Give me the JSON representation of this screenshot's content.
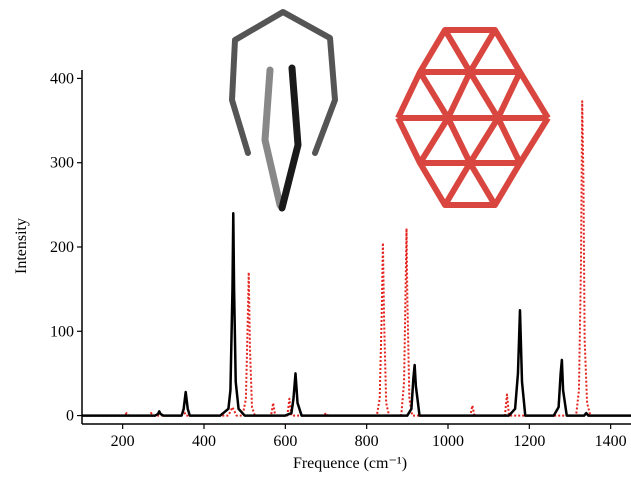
{
  "chart_data": {
    "type": "line",
    "xlabel": "Frequence (cm⁻¹)",
    "ylabel": "Intensity",
    "xlim": [
      100,
      1450
    ],
    "ylim": [
      -10,
      410
    ],
    "xticks": [
      200,
      400,
      600,
      800,
      1000,
      1200,
      1400
    ],
    "yticks": [
      0,
      100,
      200,
      300,
      400
    ],
    "series": [
      {
        "color": "#000000",
        "line_style": "solid",
        "x": [
          100,
          280,
          287,
          290,
          293,
          300,
          345,
          350,
          355,
          360,
          365,
          440,
          460,
          465,
          470,
          472,
          474,
          478,
          485,
          500,
          600,
          615,
          620,
          625,
          630,
          640,
          900,
          910,
          915,
          918,
          921,
          930,
          1150,
          1165,
          1172,
          1177,
          1182,
          1190,
          1260,
          1272,
          1277,
          1280,
          1283,
          1292,
          1335,
          1340,
          1345,
          1450
        ],
        "values": [
          0,
          0,
          2,
          5,
          2,
          0,
          0,
          8,
          28,
          8,
          0,
          0,
          8,
          30,
          150,
          240,
          150,
          40,
          8,
          0,
          0,
          3,
          20,
          50,
          15,
          0,
          0,
          8,
          45,
          60,
          35,
          0,
          0,
          8,
          50,
          125,
          40,
          0,
          0,
          10,
          50,
          66,
          30,
          0,
          0,
          3,
          0,
          0
        ]
      },
      {
        "color": "#e3231d",
        "line_style": "dotted",
        "x": [
          100,
          205,
          210,
          215,
          265,
          270,
          275,
          345,
          350,
          355,
          460,
          470,
          480,
          495,
          503,
          507,
          510,
          513,
          518,
          525,
          565,
          570,
          575,
          605,
          610,
          615,
          695,
          700,
          705,
          825,
          832,
          837,
          840,
          843,
          848,
          855,
          885,
          892,
          896,
          898,
          900,
          905,
          912,
          1055,
          1060,
          1065,
          1140,
          1145,
          1150,
          1315,
          1322,
          1327,
          1330,
          1333,
          1336,
          1342,
          1350,
          1450
        ],
        "values": [
          0,
          0,
          3,
          0,
          0,
          3,
          0,
          0,
          6,
          0,
          0,
          10,
          0,
          0,
          20,
          100,
          170,
          80,
          10,
          0,
          0,
          15,
          0,
          0,
          20,
          0,
          0,
          3,
          0,
          0,
          20,
          120,
          205,
          110,
          15,
          0,
          0,
          40,
          160,
          222,
          140,
          20,
          0,
          0,
          12,
          0,
          0,
          25,
          0,
          0,
          30,
          180,
          373,
          280,
          90,
          15,
          0,
          0
        ]
      }
    ]
  }
}
